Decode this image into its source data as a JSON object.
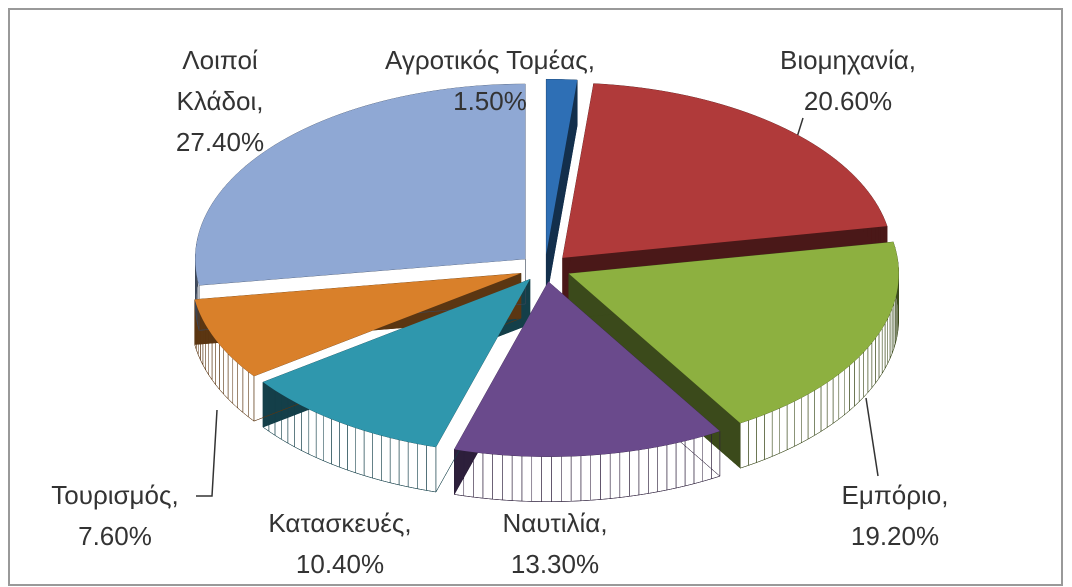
{
  "chart_data": {
    "type": "pie",
    "categories": [
      "Αγροτικός Τομέας,",
      "Βιομηχανία,",
      "Εμπόριο,",
      "Ναυτιλία,",
      "Κατασκευές,",
      "Τουρισμός,",
      "Λοιποί Κλάδοι,"
    ],
    "values": [
      1.5,
      20.6,
      19.2,
      13.3,
      10.4,
      7.6,
      27.4
    ],
    "value_labels": [
      "1.50%",
      "20.60%",
      "19.20%",
      "13.30%",
      "10.40%",
      "7.60%",
      "27.40%"
    ],
    "colors": [
      "#2e6fb5",
      "#b03a3a",
      "#8db040",
      "#6a4a8c",
      "#2f97ad",
      "#d9802a",
      "#8fa8d4"
    ]
  }
}
